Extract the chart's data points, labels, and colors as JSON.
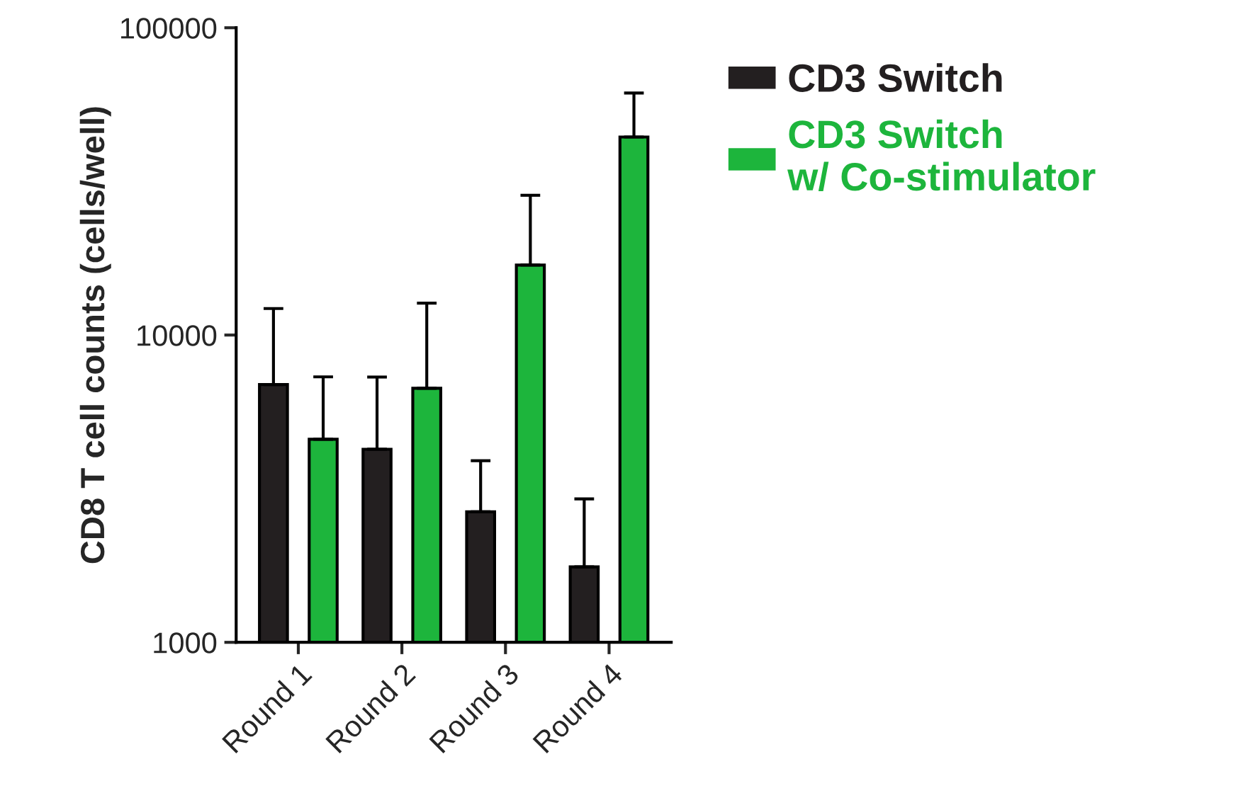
{
  "chart_data": {
    "type": "bar",
    "ylabel": "CD8 T cell counts (cells/well)",
    "categories": [
      "Round 1",
      "Round 2",
      "Round 3",
      "Round 4"
    ],
    "series": [
      {
        "name": "CD3 Switch",
        "color": "#231f20",
        "values": [
          6900,
          4250,
          2660,
          1760
        ],
        "errors": [
          [
            6900,
            12200
          ],
          [
            4250,
            7300
          ],
          [
            2660,
            3900
          ],
          [
            1760,
            2930
          ]
        ]
      },
      {
        "name": "CD3 Switch\nw/ Co-stimulator",
        "color": "#1db53c",
        "values": [
          4580,
          6710,
          16900,
          44100
        ],
        "errors": [
          [
            4580,
            7310
          ],
          [
            6710,
            12700
          ],
          [
            16900,
            28500
          ],
          [
            44100,
            61300
          ]
        ]
      }
    ],
    "log": true,
    "ylim": [
      1000,
      100000
    ],
    "yticks": [
      1000,
      10000,
      100000
    ],
    "grid": false,
    "legend": "right"
  }
}
